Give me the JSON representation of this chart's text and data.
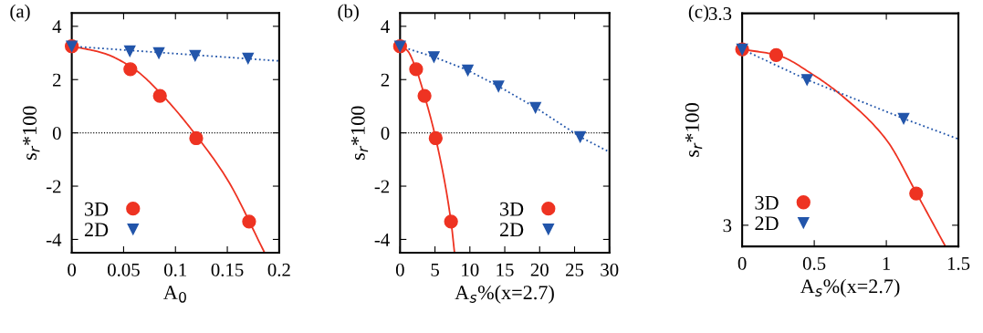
{
  "chart_data": [
    {
      "type": "scatter",
      "title": "(a)",
      "xlabel": "A$_{0}$",
      "ylabel": "s$_{r}$*100",
      "xlim": [
        0,
        0.2
      ],
      "ylim": [
        -4.5,
        4.5
      ],
      "xticks": [
        0,
        0.05,
        0.1,
        0.15,
        0.2
      ],
      "yticks": [
        -4,
        -2,
        0,
        2,
        4
      ],
      "legend": "bottom left",
      "grid": false,
      "ref_lines": [
        {
          "axis": "y",
          "value": 0,
          "color": "#000000",
          "line_style": "dotted"
        }
      ],
      "series": [
        {
          "type": "line",
          "color": "#ee3322",
          "line_style": "solid",
          "marker": "none",
          "x": [
            0,
            0.03,
            0.06,
            0.09,
            0.12,
            0.15,
            0.186
          ],
          "values": [
            3.25,
            3.0,
            2.4,
            1.3,
            -0.1,
            -1.75,
            -4.5
          ]
        },
        {
          "type": "line",
          "color": "#2255aa",
          "line_style": "dotted",
          "marker": "none",
          "x": [
            0,
            0.2
          ],
          "values": [
            3.25,
            2.7
          ]
        },
        {
          "name": "3D",
          "type": "scatter",
          "color": "#ee3322",
          "marker": "circle",
          "x": [
            0,
            0.0565,
            0.085,
            0.12,
            0.171
          ],
          "values": [
            3.25,
            2.39,
            1.39,
            -0.2,
            -3.33
          ]
        },
        {
          "name": "2D",
          "type": "scatter",
          "color": "#2255aa",
          "marker": "triangle",
          "x": [
            0,
            0.056,
            0.084,
            0.119,
            0.17
          ],
          "values": [
            3.25,
            3.07,
            3.0,
            2.9,
            2.8
          ]
        }
      ]
    },
    {
      "type": "scatter",
      "title": "(b)",
      "xlabel": "A$_{s}$%(x=2.7)",
      "ylabel": "s$_{r}$*100",
      "xlim": [
        0,
        30
      ],
      "ylim": [
        -4.5,
        4.5
      ],
      "xticks": [
        0,
        5,
        10,
        15,
        20,
        25,
        30
      ],
      "yticks": [
        -4,
        -2,
        0,
        2,
        4
      ],
      "legend": "bottom",
      "grid": false,
      "ref_lines": [
        {
          "axis": "y",
          "value": 0,
          "color": "#000000",
          "line_style": "dotted"
        }
      ],
      "series": [
        {
          "type": "line",
          "color": "#ee3322",
          "line_style": "solid",
          "marker": "none",
          "x": [
            0,
            1,
            2.3,
            3.5,
            5.1,
            7.3,
            7.8
          ],
          "values": [
            3.25,
            3.1,
            2.39,
            1.39,
            -0.2,
            -3.33,
            -4.5
          ]
        },
        {
          "type": "line",
          "color": "#2255aa",
          "line_style": "dotted",
          "marker": "none",
          "x": [
            0,
            4.85,
            9.7,
            14.1,
            19.4,
            25.8,
            30
          ],
          "values": [
            3.25,
            2.85,
            2.35,
            1.75,
            0.95,
            -0.15,
            -0.72
          ]
        },
        {
          "name": "3D",
          "type": "scatter",
          "color": "#ee3322",
          "marker": "circle",
          "x": [
            0,
            2.3,
            3.5,
            5.1,
            7.3
          ],
          "values": [
            3.25,
            2.39,
            1.39,
            -0.2,
            -3.33
          ]
        },
        {
          "name": "2D",
          "type": "scatter",
          "color": "#2255aa",
          "marker": "triangle",
          "x": [
            0,
            4.85,
            9.7,
            14.1,
            19.4,
            25.8
          ],
          "values": [
            3.25,
            2.85,
            2.35,
            1.75,
            0.95,
            -0.15
          ]
        }
      ]
    },
    {
      "type": "scatter",
      "title": "(c)",
      "xlabel": "A$_{s}$%(x=2.7)",
      "ylabel": "s$_{r}$*100",
      "xlim": [
        0,
        1.5
      ],
      "ylim": [
        2.97,
        3.3
      ],
      "xticks": [
        0,
        0.5,
        1,
        1.5
      ],
      "yticks": [
        3,
        3.3
      ],
      "legend": "bottom left",
      "grid": false,
      "series": [
        {
          "type": "line",
          "color": "#ee3322",
          "line_style": "solid",
          "marker": "none",
          "x": [
            0,
            0.24,
            0.5,
            0.7,
            1.0,
            1.21,
            1.41
          ],
          "values": [
            3.249,
            3.241,
            3.212,
            3.182,
            3.121,
            3.045,
            2.97
          ]
        },
        {
          "type": "line",
          "color": "#2255aa",
          "line_style": "dotted",
          "marker": "none",
          "x": [
            0,
            0.45,
            1.12,
            1.5
          ],
          "values": [
            3.249,
            3.206,
            3.151,
            3.122
          ]
        },
        {
          "name": "3D",
          "type": "scatter",
          "color": "#ee3322",
          "marker": "circle",
          "x": [
            0,
            0.236,
            1.207
          ],
          "values": [
            3.249,
            3.241,
            3.045
          ]
        },
        {
          "name": "2D",
          "type": "scatter",
          "color": "#2255aa",
          "marker": "triangle",
          "x": [
            0,
            0.45,
            1.12
          ],
          "values": [
            3.249,
            3.206,
            3.151
          ]
        }
      ]
    }
  ]
}
